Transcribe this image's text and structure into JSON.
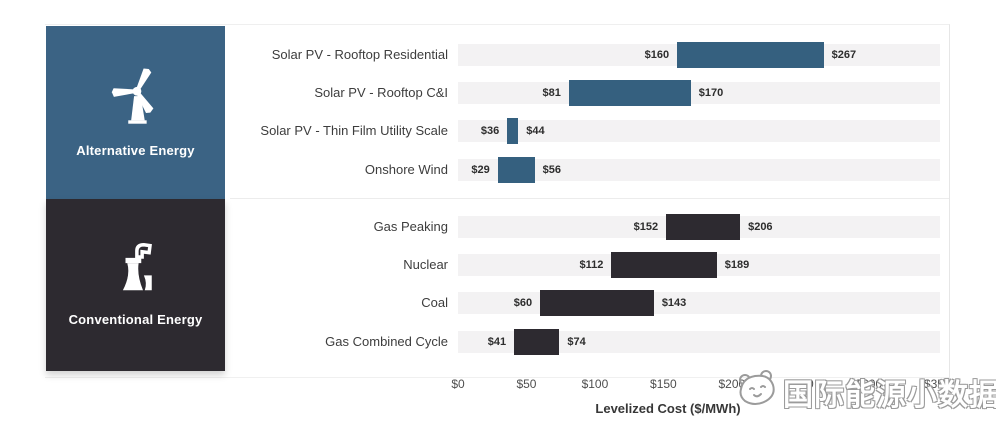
{
  "chart_data": {
    "type": "bar",
    "subtype": "horizontal-range-bar",
    "title": "",
    "xlabel": "Levelized Cost ($/MWh)",
    "ylabel": "",
    "xlim": [
      0,
      352
    ],
    "grid": false,
    "x_ticks": [
      {
        "value": 0,
        "label": "$0"
      },
      {
        "value": 50,
        "label": "$50"
      },
      {
        "value": 100,
        "label": "$100"
      },
      {
        "value": 150,
        "label": "$150"
      },
      {
        "value": 200,
        "label": "$200"
      },
      {
        "value": 250,
        "label": "$250"
      },
      {
        "value": 300,
        "label": "$300"
      },
      {
        "value": 350,
        "label": "$350"
      }
    ],
    "groups": [
      {
        "name": "Alternative Energy",
        "bar_color": "#35607f",
        "items": [
          {
            "label": "Solar PV - Rooftop Residential",
            "min": 160,
            "max": 267,
            "min_label": "$160",
            "max_label": "$267"
          },
          {
            "label": "Solar PV - Rooftop C&I",
            "min": 81,
            "max": 170,
            "min_label": "$81",
            "max_label": "$170"
          },
          {
            "label": "Solar PV - Thin Film Utility Scale",
            "min": 36,
            "max": 44,
            "min_label": "$36",
            "max_label": "$44"
          },
          {
            "label": "Onshore Wind",
            "min": 29,
            "max": 56,
            "min_label": "$29",
            "max_label": "$56"
          }
        ]
      },
      {
        "name": "Conventional Energy",
        "bar_color": "#2d2a30",
        "items": [
          {
            "label": "Gas Peaking",
            "min": 152,
            "max": 206,
            "min_label": "$152",
            "max_label": "$206"
          },
          {
            "label": "Nuclear",
            "min": 112,
            "max": 189,
            "min_label": "$112",
            "max_label": "$189"
          },
          {
            "label": "Coal",
            "min": 60,
            "max": 143,
            "min_label": "$60",
            "max_label": "$143"
          },
          {
            "label": "Gas Combined Cycle",
            "min": 41,
            "max": 74,
            "min_label": "$41",
            "max_label": "$74"
          }
        ]
      }
    ]
  },
  "sidebar": {
    "alternative": {
      "label": "Alternative Energy",
      "color": "#3b6384",
      "icon": "wind-turbine-icon"
    },
    "conventional": {
      "label": "Conventional Energy",
      "color": "#2d2a30",
      "icon": "power-plant-icon"
    }
  },
  "axis": {
    "title": "Levelized Cost ($/MWh)"
  },
  "watermark": {
    "text": "国际能源小数据",
    "icon": "panda-face-icon",
    "color": "#9b9b9b"
  },
  "colors": {
    "track": "#f3f2f3",
    "alt_bar": "#35607f",
    "conv_bar": "#2d2a30"
  }
}
